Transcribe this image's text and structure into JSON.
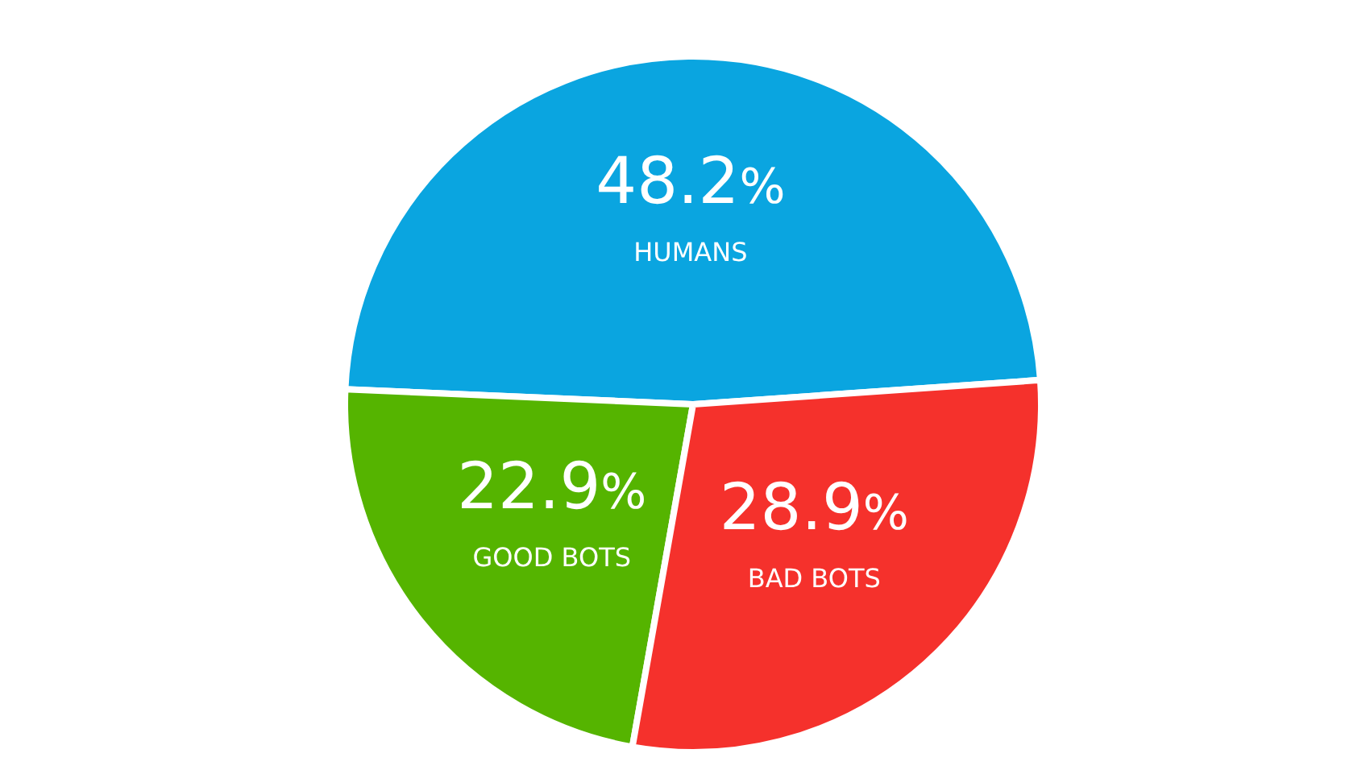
{
  "chart_data": {
    "type": "pie",
    "categories": [
      "HUMANS",
      "GOOD BOTS",
      "BAD BOTS"
    ],
    "values": [
      48.2,
      22.9,
      28.9
    ],
    "colors": [
      "#0aa5e0",
      "#55b400",
      "#f5312c"
    ],
    "value_labels": [
      "48.2%",
      "22.9%",
      "28.9%"
    ],
    "legend": false
  }
}
